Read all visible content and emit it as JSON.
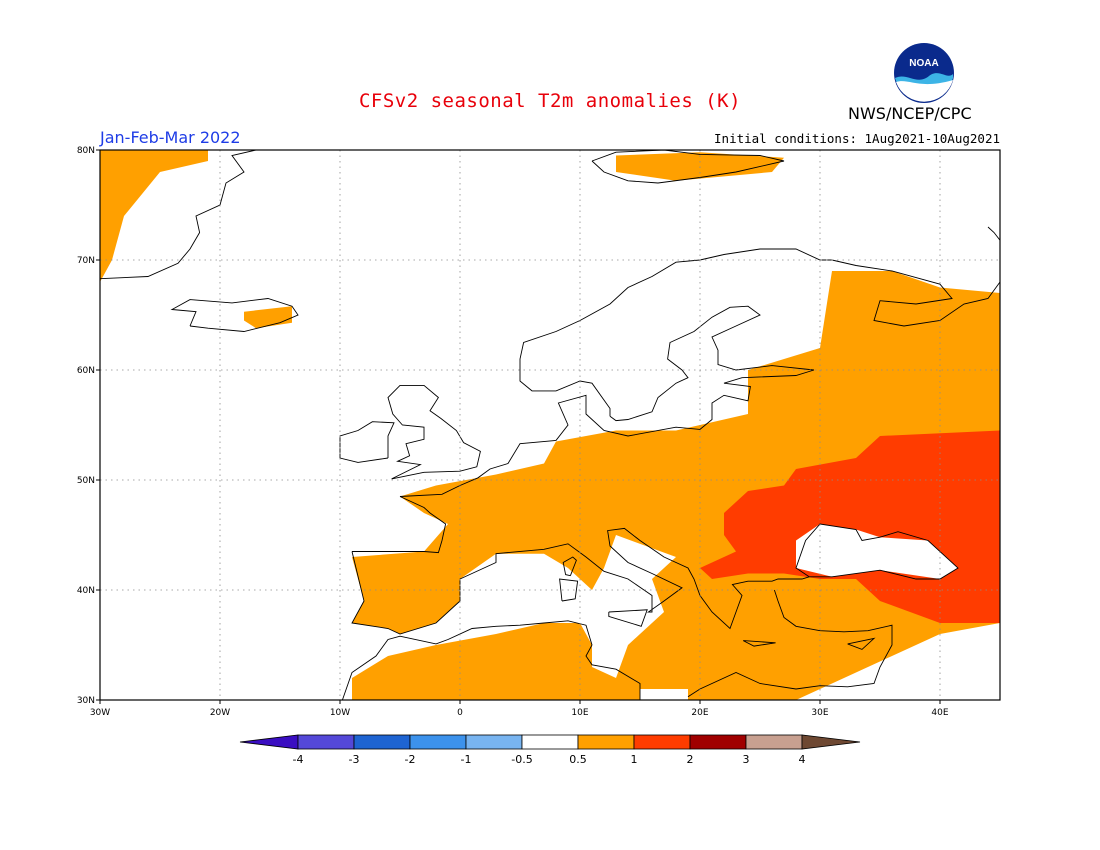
{
  "title": "CFSv2 seasonal T2m anomalies (K)",
  "agency": "NWS/NCEP/CPC",
  "logo_text": "NOAA",
  "period": "Jan-Feb-Mar 2022",
  "initial_conditions": "Initial conditions: 1Aug2021-10Aug2021",
  "colors": {
    "title": "#e8000a",
    "period": "#1e3ce6",
    "land_outline": "#000000",
    "grid": "#8c8c8c"
  },
  "map": {
    "lon_range": [
      -30,
      45
    ],
    "lat_range": [
      30,
      80
    ],
    "x_ticks": [
      {
        "value": -30,
        "label": "30W"
      },
      {
        "value": -20,
        "label": "20W"
      },
      {
        "value": -10,
        "label": "10W"
      },
      {
        "value": 0,
        "label": "0"
      },
      {
        "value": 10,
        "label": "10E"
      },
      {
        "value": 20,
        "label": "20E"
      },
      {
        "value": 30,
        "label": "30E"
      },
      {
        "value": 40,
        "label": "40E"
      }
    ],
    "y_ticks": [
      {
        "value": 30,
        "label": "30N"
      },
      {
        "value": 40,
        "label": "40N"
      },
      {
        "value": 50,
        "label": "50N"
      },
      {
        "value": 60,
        "label": "60N"
      },
      {
        "value": 70,
        "label": "70N"
      },
      {
        "value": 80,
        "label": "80N"
      }
    ],
    "grid": true
  },
  "colorbar": {
    "bins": [
      {
        "color": "#3a0ec2"
      },
      {
        "color": "#5448d8"
      },
      {
        "color": "#1e64d2"
      },
      {
        "color": "#3c92ec"
      },
      {
        "color": "#78b4f0"
      },
      {
        "color": "#ffffff"
      },
      {
        "color": "#ffa000"
      },
      {
        "color": "#ff3c00"
      },
      {
        "color": "#a00000"
      },
      {
        "color": "#c8a090"
      },
      {
        "color": "#6e4832"
      }
    ],
    "tick_labels": [
      "-4",
      "-3",
      "-2",
      "-1",
      "-0.5",
      "0.5",
      "1",
      "2",
      "3",
      "4"
    ]
  },
  "anomaly_regions": [
    {
      "level": 1,
      "name": "greenland-east",
      "lonlat": [
        [
          -30,
          80
        ],
        [
          -21,
          80
        ],
        [
          -21,
          79
        ],
        [
          -25,
          78
        ],
        [
          -28,
          74
        ],
        [
          -29,
          70
        ],
        [
          -30,
          68
        ]
      ]
    },
    {
      "level": 1,
      "name": "iceland-east",
      "lonlat": [
        [
          -18,
          65.3
        ],
        [
          -14,
          65.8
        ],
        [
          -14,
          64.3
        ],
        [
          -17,
          63.8
        ],
        [
          -18,
          64.5
        ]
      ]
    },
    {
      "level": 1,
      "name": "svalbard",
      "lonlat": [
        [
          13,
          79.5
        ],
        [
          20,
          79.8
        ],
        [
          27,
          79.3
        ],
        [
          26,
          78
        ],
        [
          18,
          77.2
        ],
        [
          13,
          78
        ]
      ]
    },
    {
      "level": 1,
      "name": "iberia-france-med",
      "lonlat": [
        [
          -2,
          49.5
        ],
        [
          3,
          50.5
        ],
        [
          7,
          51.5
        ],
        [
          8,
          53.5
        ],
        [
          13,
          54.5
        ],
        [
          18,
          54.5
        ],
        [
          24,
          56
        ],
        [
          24,
          60
        ],
        [
          30,
          62
        ],
        [
          31,
          69
        ],
        [
          36,
          69
        ],
        [
          40,
          67.5
        ],
        [
          45,
          67
        ],
        [
          45,
          37
        ],
        [
          40,
          36
        ],
        [
          36,
          34
        ],
        [
          32,
          32
        ],
        [
          30,
          31
        ],
        [
          28,
          30
        ],
        [
          19,
          30
        ],
        [
          19,
          31
        ],
        [
          14,
          31
        ],
        [
          13,
          32
        ],
        [
          14,
          35
        ],
        [
          17,
          38
        ],
        [
          16,
          41
        ],
        [
          18,
          43
        ],
        [
          13,
          45
        ],
        [
          12,
          42
        ],
        [
          11,
          40
        ],
        [
          9,
          42
        ],
        [
          7,
          43.3
        ],
        [
          3,
          43.3
        ],
        [
          0,
          41
        ],
        [
          0,
          39
        ],
        [
          -2,
          37
        ],
        [
          -5,
          36
        ],
        [
          -6,
          36.5
        ],
        [
          -9,
          37
        ],
        [
          -8,
          39
        ],
        [
          -9,
          43
        ],
        [
          -3,
          43.5
        ],
        [
          -1,
          46
        ],
        [
          -3,
          47
        ],
        [
          -5,
          48.5
        ]
      ]
    },
    {
      "level": 1,
      "name": "north-africa",
      "lonlat": [
        [
          -9,
          30
        ],
        [
          -9,
          32
        ],
        [
          -6,
          34
        ],
        [
          -2,
          35
        ],
        [
          3,
          36
        ],
        [
          7,
          37
        ],
        [
          10,
          37
        ],
        [
          11,
          35
        ],
        [
          11,
          33
        ],
        [
          15,
          31
        ],
        [
          15,
          30
        ]
      ]
    },
    {
      "level": 2,
      "name": "eastern-europe-strong",
      "lonlat": [
        [
          22,
          47
        ],
        [
          24,
          49
        ],
        [
          27,
          49.5
        ],
        [
          28,
          51
        ],
        [
          33,
          52
        ],
        [
          35,
          54
        ],
        [
          45,
          54.5
        ],
        [
          45,
          37
        ],
        [
          40,
          37
        ],
        [
          35,
          39
        ],
        [
          33,
          41
        ],
        [
          30,
          41
        ],
        [
          27,
          41.5
        ],
        [
          24,
          41.5
        ],
        [
          21,
          41
        ],
        [
          20,
          42
        ],
        [
          23,
          43.5
        ],
        [
          22,
          45
        ]
      ]
    }
  ],
  "neutral_regions": [
    {
      "name": "black-sea",
      "lonlat": [
        [
          28,
          42
        ],
        [
          28,
          44.5
        ],
        [
          30,
          46
        ],
        [
          33,
          45.5
        ],
        [
          35,
          44.8
        ],
        [
          39,
          44.5
        ],
        [
          41.5,
          42
        ],
        [
          40,
          41
        ],
        [
          35,
          41.8
        ],
        [
          31,
          41.2
        ]
      ]
    },
    {
      "name": "fennoscandia-north",
      "lonlat": [
        [
          5,
          58
        ],
        [
          5,
          62
        ],
        [
          10,
          64
        ],
        [
          14,
          67
        ],
        [
          18,
          69.5
        ],
        [
          24,
          71
        ],
        [
          29,
          70.5
        ],
        [
          31,
          69
        ],
        [
          26,
          68
        ],
        [
          24,
          66
        ],
        [
          22,
          63
        ],
        [
          18,
          61
        ],
        [
          17,
          59
        ],
        [
          12,
          58
        ]
      ]
    },
    {
      "name": "british-isles",
      "lonlat": [
        [
          -10,
          51
        ],
        [
          -10,
          55
        ],
        [
          -6,
          58.7
        ],
        [
          -2,
          58.7
        ],
        [
          1,
          53
        ],
        [
          2,
          51
        ],
        [
          -5,
          50
        ]
      ]
    }
  ]
}
